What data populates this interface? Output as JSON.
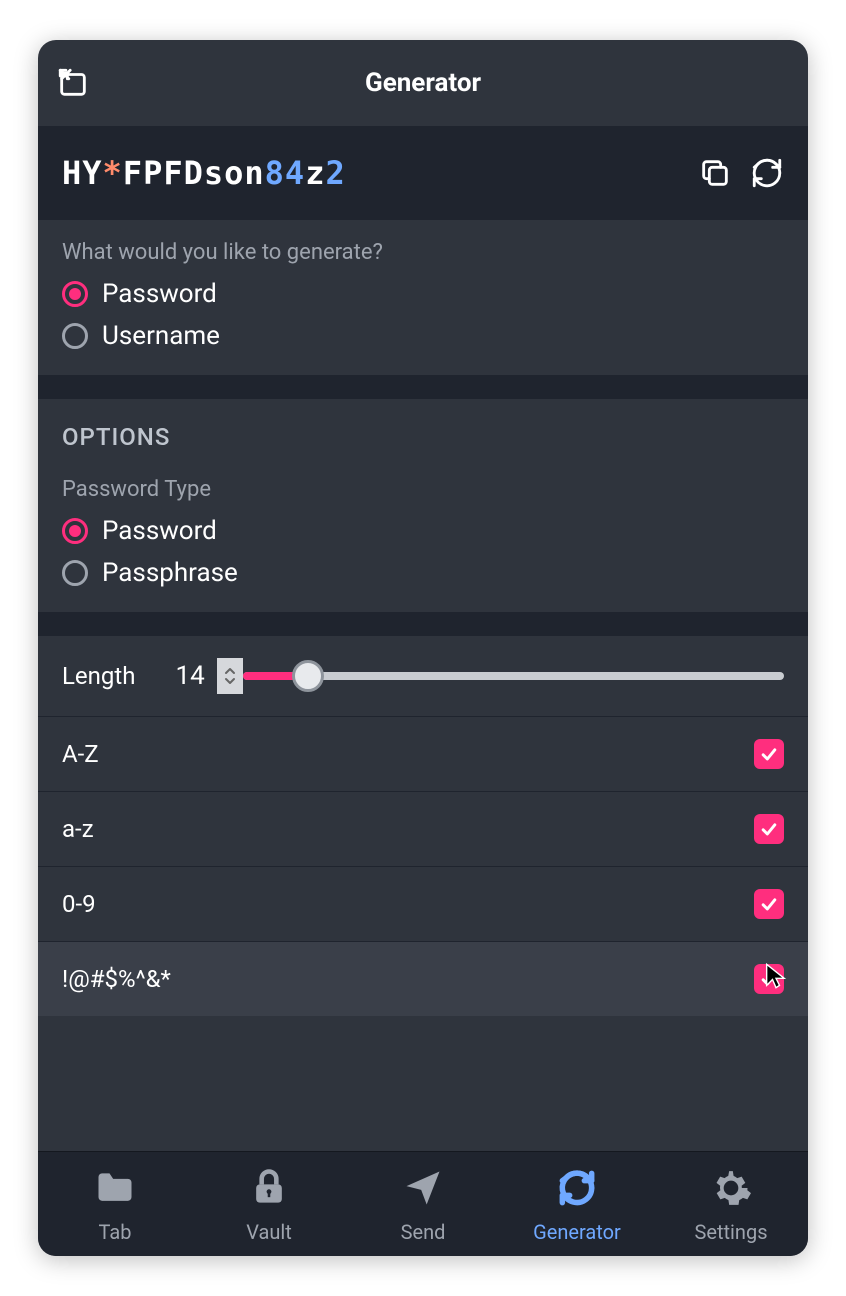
{
  "colors": {
    "bg_dark": "#2f343d",
    "bg_darker": "#1f242e",
    "accent_pink": "#ff2e7e",
    "accent_blue": "#6fa8ff",
    "text_muted": "#9ea4ae",
    "text_white": "#ffffff",
    "special_orange": "#ff8b6b",
    "slider_track": "#c9ccd1"
  },
  "header": {
    "title": "Generator"
  },
  "generated": {
    "tokens": [
      {
        "text": "HY",
        "class": "tok-letter"
      },
      {
        "text": "*",
        "class": "tok-special"
      },
      {
        "text": "FPFDson",
        "class": "tok-letter"
      },
      {
        "text": "84",
        "class": "tok-number"
      },
      {
        "text": "z",
        "class": "tok-letter"
      },
      {
        "text": "2",
        "class": "tok-number"
      }
    ]
  },
  "generate_type": {
    "label": "What would you like to generate?",
    "options": [
      {
        "label": "Password",
        "selected": true
      },
      {
        "label": "Username",
        "selected": false
      }
    ]
  },
  "options_header": "OPTIONS",
  "password_type": {
    "label": "Password Type",
    "options": [
      {
        "label": "Password",
        "selected": true
      },
      {
        "label": "Passphrase",
        "selected": false
      }
    ]
  },
  "length": {
    "label": "Length",
    "value": "14",
    "slider_percent": 12
  },
  "char_options": [
    {
      "label": "A-Z",
      "checked": true,
      "hovered": false
    },
    {
      "label": "a-z",
      "checked": true,
      "hovered": false
    },
    {
      "label": "0-9",
      "checked": true,
      "hovered": false
    },
    {
      "label": "!@#$%^&*",
      "checked": true,
      "hovered": true
    }
  ],
  "tabs": [
    {
      "label": "Tab",
      "icon": "folder",
      "active": false
    },
    {
      "label": "Vault",
      "icon": "lock",
      "active": false
    },
    {
      "label": "Send",
      "icon": "send",
      "active": false
    },
    {
      "label": "Generator",
      "icon": "refresh",
      "active": true
    },
    {
      "label": "Settings",
      "icon": "gear",
      "active": false
    }
  ]
}
